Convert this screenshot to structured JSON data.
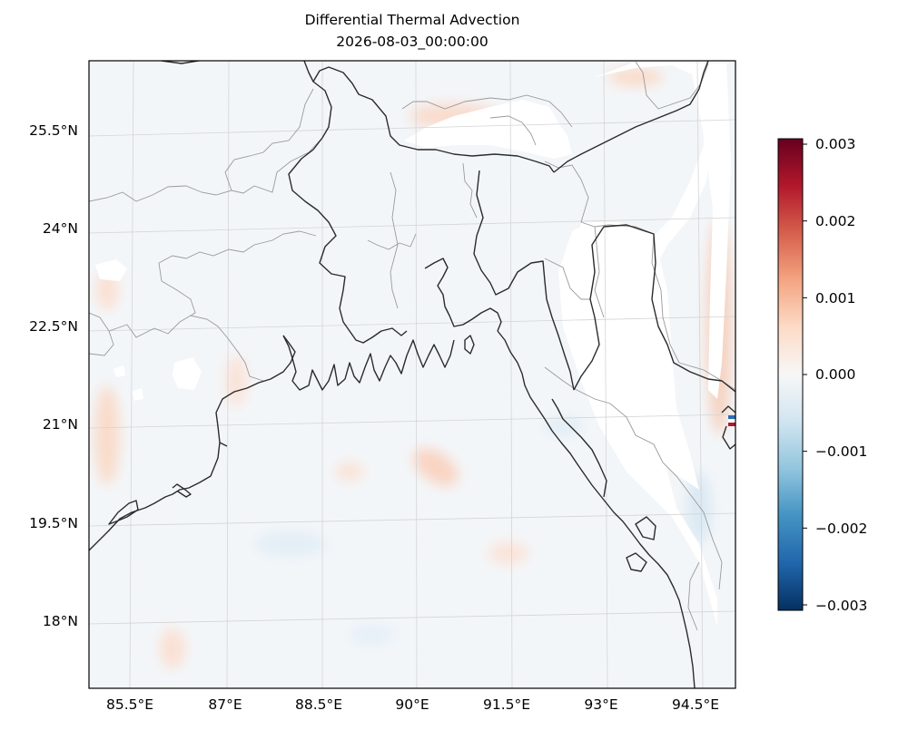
{
  "title": "Differential Thermal Advection",
  "subtitle": "2026-08-03_00:00:00",
  "map": {
    "lon_range": [
      85.0,
      95.4
    ],
    "lat_range": [
      16.8,
      26.6
    ],
    "lat_ticks": [
      {
        "value": 25.5,
        "label": "25.5°N"
      },
      {
        "value": 24.0,
        "label": "24°N"
      },
      {
        "value": 22.5,
        "label": "22.5°N"
      },
      {
        "value": 21.0,
        "label": "21°N"
      },
      {
        "value": 19.5,
        "label": "19.5°N"
      },
      {
        "value": 18.0,
        "label": "18°N"
      }
    ],
    "lon_ticks": [
      {
        "value": 85.5,
        "label": "85.5°E"
      },
      {
        "value": 87.0,
        "label": "87°E"
      },
      {
        "value": 88.5,
        "label": "88.5°E"
      },
      {
        "value": 90.0,
        "label": "90°E"
      },
      {
        "value": 91.5,
        "label": "91.5°E"
      },
      {
        "value": 93.0,
        "label": "93°E"
      },
      {
        "value": 94.5,
        "label": "94.5°E"
      }
    ],
    "gridlines": true,
    "colormap": "RdBu_r",
    "colors": {
      "coastline": "#2b2b2b",
      "state_borders": "#9a9a9a",
      "gridline": "#d0d0d0",
      "field_background": "#f2f6f9"
    }
  },
  "colorbar": {
    "range": [
      -0.003,
      0.003
    ],
    "ticks": [
      {
        "value": 0.003,
        "label": "0.003"
      },
      {
        "value": 0.002,
        "label": "0.002"
      },
      {
        "value": 0.001,
        "label": "0.001"
      },
      {
        "value": 0.0,
        "label": "0.000"
      },
      {
        "value": -0.001,
        "label": "−0.001"
      },
      {
        "value": -0.002,
        "label": "−0.002"
      },
      {
        "value": -0.003,
        "label": "−0.003"
      }
    ],
    "stops": [
      "#053061",
      "#2166ac",
      "#4393c3",
      "#92c5de",
      "#d1e5f0",
      "#f7f7f7",
      "#fddbc7",
      "#f4a582",
      "#d6604d",
      "#b2182b",
      "#67001f"
    ]
  }
}
